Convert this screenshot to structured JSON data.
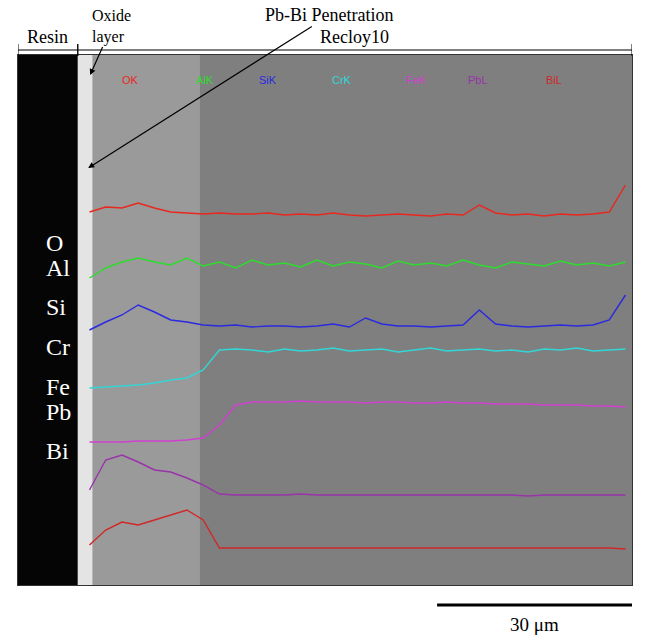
{
  "chart_data": {
    "type": "line",
    "tick_labels": false,
    "grid": false,
    "xlim": [
      0,
      94.5
    ],
    "ylim": [
      5,
      535
    ],
    "x": [
      11,
      13.5,
      16,
      18.5,
      21,
      23.5,
      26,
      28.5,
      31,
      33.5,
      36,
      38.5,
      41,
      43.5,
      46,
      48.5,
      51,
      53.5,
      56,
      58.5,
      61,
      63.5,
      66,
      68.5,
      71,
      73.5,
      76,
      78.5,
      81,
      83.5,
      86,
      88.5,
      91,
      93.5
    ],
    "series": [
      {
        "name": "O",
        "channel": "OK",
        "color": "#e8281e",
        "values": [
          378,
          383,
          382,
          387,
          382,
          378,
          377,
          376,
          377,
          376,
          376,
          377,
          375,
          376,
          375,
          377,
          375,
          374,
          375,
          376,
          375,
          374,
          376,
          375,
          385,
          377,
          375,
          376,
          374,
          376,
          375,
          376,
          378,
          405
        ]
      },
      {
        "name": "Al",
        "channel": "AlK",
        "color": "#2edc2e",
        "values": [
          312,
          322,
          328,
          332,
          328,
          325,
          332,
          324,
          328,
          322,
          330,
          325,
          327,
          323,
          330,
          324,
          328,
          326,
          322,
          329,
          325,
          327,
          324,
          330,
          325,
          322,
          328,
          326,
          324,
          329,
          325,
          327,
          324,
          328
        ]
      },
      {
        "name": "Si",
        "channel": "SiK",
        "color": "#2a2ae0",
        "values": [
          260,
          268,
          275,
          285,
          278,
          270,
          268,
          265,
          264,
          265,
          263,
          264,
          264,
          263,
          264,
          266,
          263,
          272,
          266,
          264,
          264,
          263,
          264,
          265,
          280,
          266,
          264,
          263,
          264,
          265,
          264,
          265,
          270,
          295
        ]
      },
      {
        "name": "Cr",
        "channel": "CrK",
        "color": "#33d6d6",
        "values": [
          202,
          203,
          204,
          205,
          207,
          210,
          212,
          220,
          240,
          241,
          240,
          238,
          241,
          239,
          240,
          242,
          239,
          240,
          241,
          238,
          240,
          242,
          239,
          240,
          241,
          239,
          240,
          238,
          241,
          240,
          242,
          239,
          240,
          241
        ]
      },
      {
        "name": "Fe",
        "channel": "FeK",
        "color": "#d040d0",
        "values": [
          148,
          148,
          148,
          149,
          149,
          149,
          150,
          152,
          165,
          185,
          188,
          188,
          188,
          189,
          188,
          188,
          188,
          187,
          188,
          188,
          187,
          187,
          188,
          187,
          187,
          186,
          186,
          186,
          185,
          185,
          185,
          184,
          184,
          183
        ]
      },
      {
        "name": "Pb",
        "channel": "PbL",
        "color": "#9933aa",
        "values": [
          100,
          130,
          135,
          128,
          120,
          118,
          112,
          105,
          96,
          95,
          95,
          95,
          95,
          96,
          95,
          95,
          95,
          95,
          95,
          95,
          95,
          95,
          95,
          95,
          95,
          95,
          95,
          94,
          95,
          95,
          95,
          95,
          95,
          95
        ]
      },
      {
        "name": "Bi",
        "channel": "BiL",
        "color": "#d02828",
        "values": [
          45,
          60,
          68,
          65,
          70,
          75,
          80,
          70,
          42,
          42,
          42,
          42,
          42,
          42,
          42,
          42,
          42,
          42,
          42,
          42,
          42,
          42,
          42,
          42,
          42,
          42,
          42,
          42,
          42,
          42,
          42,
          42,
          42,
          41
        ]
      }
    ],
    "zones": [
      {
        "from": 0,
        "to": 9.2,
        "color": "#050505"
      },
      {
        "from": 9.2,
        "to": 11.5,
        "color": "#e4e4e4"
      },
      {
        "from": 11.5,
        "to": 28,
        "color": "#9a9a9a"
      }
    ],
    "regions": [
      {
        "label": "Resin",
        "from": 0,
        "to": 9.2
      },
      {
        "label": "Recloy10",
        "from": 9.2,
        "to": 94.5
      }
    ],
    "annotations": [
      {
        "text": "Oxide layer",
        "x": 11.1,
        "y": 515
      },
      {
        "text": "Pb-Bi Penetration",
        "x": 10.8,
        "y": 422
      }
    ],
    "scale_bar": {
      "length": 30,
      "label": "30 μm"
    }
  }
}
